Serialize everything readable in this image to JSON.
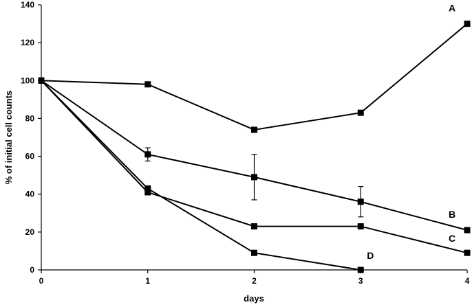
{
  "chart_data": {
    "type": "line",
    "xlabel": "days",
    "ylabel": "% of initial cell counts",
    "xlim": [
      0,
      4
    ],
    "ylim": [
      0,
      140
    ],
    "x_ticks": [
      "0",
      "1",
      "2",
      "3",
      "4"
    ],
    "y_ticks": [
      "0",
      "20",
      "40",
      "60",
      "80",
      "100",
      "120",
      "140"
    ],
    "grid": false,
    "series": [
      {
        "name": "A",
        "x": [
          0,
          1,
          2,
          3,
          4
        ],
        "values": [
          100,
          98,
          74,
          83,
          130
        ]
      },
      {
        "name": "B",
        "x": [
          0,
          1,
          2,
          3,
          4
        ],
        "values": [
          100,
          61,
          49,
          36,
          21
        ],
        "error": [
          0,
          3.5,
          12,
          8,
          0
        ]
      },
      {
        "name": "C",
        "x": [
          0,
          1,
          2,
          3,
          4
        ],
        "values": [
          100,
          41,
          23,
          23,
          9
        ]
      },
      {
        "name": "D",
        "x": [
          0,
          1,
          2,
          3
        ],
        "values": [
          100,
          43,
          9,
          0
        ]
      }
    ]
  }
}
